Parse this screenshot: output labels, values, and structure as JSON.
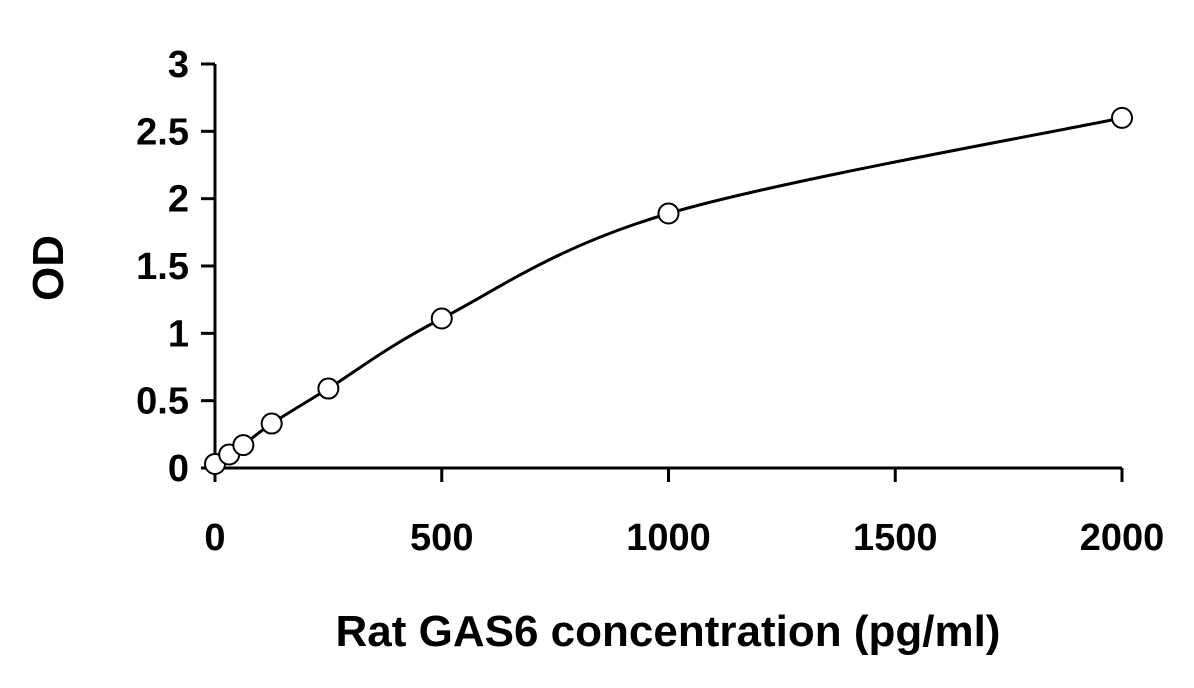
{
  "chart_data": {
    "type": "scatter",
    "title": "",
    "xlabel": "Rat GAS6 concentration (pg/ml)",
    "ylabel": "OD",
    "xlim": [
      0,
      2000
    ],
    "ylim": [
      0,
      3
    ],
    "x_ticks": [
      "0",
      "500",
      "1000",
      "1500",
      "2000"
    ],
    "y_ticks": [
      "0",
      "0.5",
      "1",
      "1.5",
      "2",
      "2.5",
      "3"
    ],
    "grid": false,
    "legend": "none",
    "series": [
      {
        "marker": "open-circle",
        "fit_line": true,
        "points": [
          {
            "x": 0,
            "y": 0.03
          },
          {
            "x": 31.25,
            "y": 0.1
          },
          {
            "x": 62.5,
            "y": 0.17
          },
          {
            "x": 125,
            "y": 0.33
          },
          {
            "x": 250,
            "y": 0.59
          },
          {
            "x": 500,
            "y": 1.11
          },
          {
            "x": 1000,
            "y": 1.89
          },
          {
            "x": 2000,
            "y": 2.6
          }
        ]
      }
    ]
  }
}
